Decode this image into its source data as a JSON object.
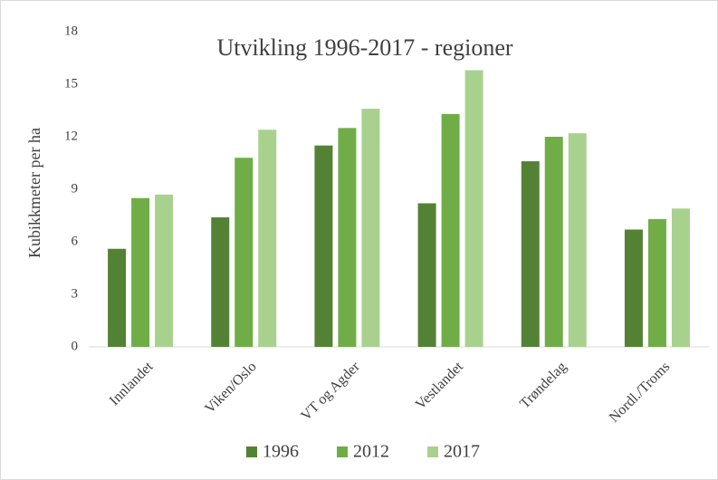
{
  "chart_data": {
    "type": "bar",
    "title": "Utvikling 1996-2017 - regioner",
    "y_label": "Kubikkmeter per ha",
    "categories": [
      "Innlandet",
      "Viken/Oslo",
      "VT og Agder",
      "Vestlandet",
      "Trøndelag",
      "Nordl./Troms"
    ],
    "series": [
      {
        "name": "1996",
        "color": "#548235",
        "values": [
          5.6,
          7.4,
          11.5,
          8.2,
          10.6,
          6.7
        ]
      },
      {
        "name": "2012",
        "color": "#70ad47",
        "values": [
          8.5,
          10.8,
          12.5,
          13.3,
          12.0,
          7.3
        ]
      },
      {
        "name": "2017",
        "color": "#a9d18e",
        "values": [
          8.7,
          12.4,
          13.6,
          15.8,
          12.2,
          7.9
        ]
      }
    ],
    "ylim": [
      0,
      18
    ],
    "yticks": [
      0,
      3,
      6,
      9,
      12,
      15,
      18
    ],
    "grid": false,
    "legend": "bottom"
  }
}
